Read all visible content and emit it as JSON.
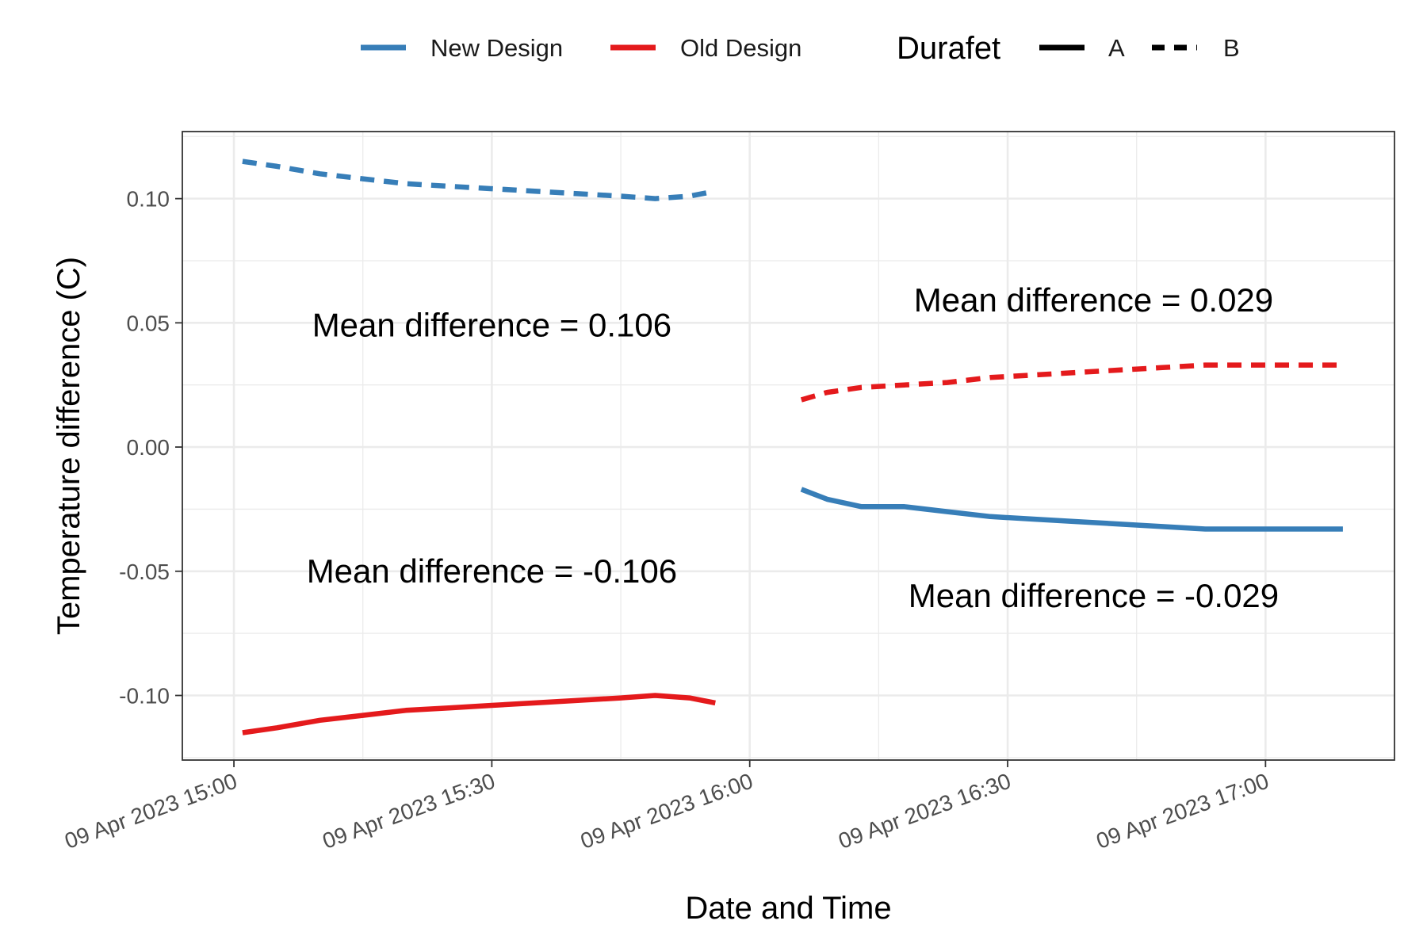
{
  "chart_data": {
    "type": "line",
    "xlabel": "Date and Time",
    "ylabel": "Temperature difference (C)",
    "x_ticks": [
      "09 Apr 2023 15:00",
      "09 Apr 2023 15:30",
      "09 Apr 2023 16:00",
      "09 Apr 2023 16:30",
      "09 Apr 2023 17:00"
    ],
    "y_ticks": [
      "-0.10",
      "-0.05",
      "0.00",
      "0.05",
      "0.10"
    ],
    "xlim": [
      "2023-04-09 14:54",
      "2023-04-09 17:15"
    ],
    "ylim": [
      -0.126,
      0.127
    ],
    "grid": true,
    "legend_placement": "top",
    "legend": {
      "color_entries": [
        {
          "label": "New Design",
          "color": "#377EB8"
        },
        {
          "label": "Old Design",
          "color": "#E41A1C"
        }
      ],
      "linetype_title": "Durafet",
      "linetype_entries": [
        {
          "label": "A",
          "dash": "solid"
        },
        {
          "label": "B",
          "dash": "dashed"
        }
      ]
    },
    "series": [
      {
        "design": "New Design",
        "durafet": "B",
        "color": "#377EB8",
        "dash": "dashed",
        "x": [
          "2023-04-09 15:01",
          "2023-04-09 15:05",
          "2023-04-09 15:10",
          "2023-04-09 15:15",
          "2023-04-09 15:20",
          "2023-04-09 15:25",
          "2023-04-09 15:30",
          "2023-04-09 15:35",
          "2023-04-09 15:40",
          "2023-04-09 15:45",
          "2023-04-09 15:49",
          "2023-04-09 15:53",
          "2023-04-09 15:56"
        ],
        "y": [
          0.115,
          0.113,
          0.11,
          0.108,
          0.106,
          0.105,
          0.104,
          0.103,
          0.102,
          0.101,
          0.1,
          0.101,
          0.103
        ]
      },
      {
        "design": "Old Design",
        "durafet": "A",
        "color": "#E41A1C",
        "dash": "solid",
        "x": [
          "2023-04-09 15:01",
          "2023-04-09 15:05",
          "2023-04-09 15:10",
          "2023-04-09 15:15",
          "2023-04-09 15:20",
          "2023-04-09 15:25",
          "2023-04-09 15:30",
          "2023-04-09 15:35",
          "2023-04-09 15:40",
          "2023-04-09 15:45",
          "2023-04-09 15:49",
          "2023-04-09 15:53",
          "2023-04-09 15:56"
        ],
        "y": [
          -0.115,
          -0.113,
          -0.11,
          -0.108,
          -0.106,
          -0.105,
          -0.104,
          -0.103,
          -0.102,
          -0.101,
          -0.1,
          -0.101,
          -0.103
        ]
      },
      {
        "design": "Old Design",
        "durafet": "B",
        "color": "#E41A1C",
        "dash": "dashed",
        "x": [
          "2023-04-09 16:06",
          "2023-04-09 16:09",
          "2023-04-09 16:13",
          "2023-04-09 16:18",
          "2023-04-09 16:23",
          "2023-04-09 16:28",
          "2023-04-09 16:33",
          "2023-04-09 16:38",
          "2023-04-09 16:43",
          "2023-04-09 16:48",
          "2023-04-09 16:53",
          "2023-04-09 16:58",
          "2023-04-09 17:03",
          "2023-04-09 17:09"
        ],
        "y": [
          0.019,
          0.022,
          0.024,
          0.025,
          0.026,
          0.028,
          0.029,
          0.03,
          0.031,
          0.032,
          0.033,
          0.033,
          0.033,
          0.033
        ]
      },
      {
        "design": "New Design",
        "durafet": "A",
        "color": "#377EB8",
        "dash": "solid",
        "x": [
          "2023-04-09 16:06",
          "2023-04-09 16:09",
          "2023-04-09 16:13",
          "2023-04-09 16:18",
          "2023-04-09 16:23",
          "2023-04-09 16:28",
          "2023-04-09 16:33",
          "2023-04-09 16:38",
          "2023-04-09 16:43",
          "2023-04-09 16:48",
          "2023-04-09 16:53",
          "2023-04-09 16:58",
          "2023-04-09 17:03",
          "2023-04-09 17:09"
        ],
        "y": [
          -0.017,
          -0.021,
          -0.024,
          -0.024,
          -0.026,
          -0.028,
          -0.029,
          -0.03,
          -0.031,
          -0.032,
          -0.033,
          -0.033,
          -0.033,
          -0.033
        ]
      }
    ],
    "annotations": [
      {
        "text": "Mean difference = 0.106",
        "x": "2023-04-09 15:30",
        "y": 0.049
      },
      {
        "text": "Mean difference = -0.106",
        "x": "2023-04-09 15:30",
        "y": -0.05
      },
      {
        "text": "Mean difference = 0.029",
        "x": "2023-04-09 16:40",
        "y": 0.059
      },
      {
        "text": "Mean difference = -0.029",
        "x": "2023-04-09 16:40",
        "y": -0.06
      }
    ]
  }
}
